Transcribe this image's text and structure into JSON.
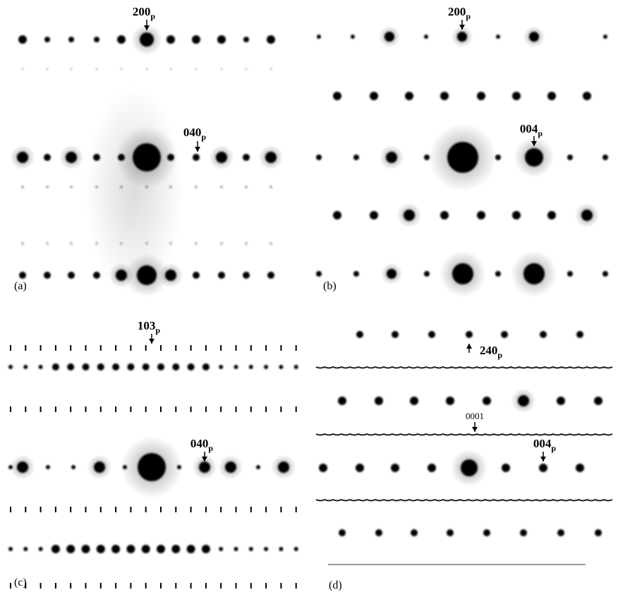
{
  "panels": [
    {
      "label": "(a)",
      "annotations": [
        {
          "main": "200",
          "sub": "p"
        },
        {
          "main": "040",
          "sub": "p"
        }
      ]
    },
    {
      "label": "(b)",
      "annotations": [
        {
          "main": "200",
          "sub": "p"
        },
        {
          "main": "004",
          "sub": "p"
        }
      ]
    },
    {
      "label": "(c)",
      "annotations": [
        {
          "main": "103",
          "sub": "p"
        },
        {
          "main": "040",
          "sub": "p"
        }
      ]
    },
    {
      "label": "(d)",
      "annotations": [
        {
          "main": "240",
          "sub": "p"
        },
        {
          "text": "0001"
        },
        {
          "main": "004",
          "sub": "p"
        }
      ]
    }
  ]
}
